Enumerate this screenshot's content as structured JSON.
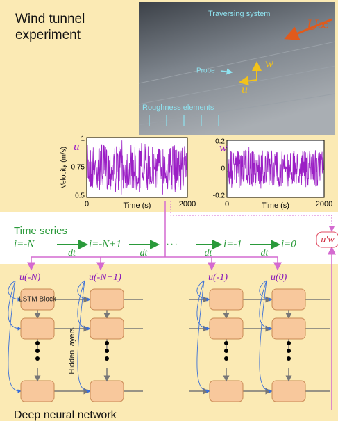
{
  "header": {
    "title": "Wind tunnel experiment"
  },
  "photo": {
    "traversing": "Traversing system",
    "probe": "Probe",
    "roughness": "Roughness elements",
    "freestream": "U∞",
    "w_axis": "w",
    "u_axis": "u"
  },
  "plots": [
    {
      "label": "u",
      "ylabel": "Velocity (m/s)",
      "xlabel": "Time (s)",
      "yticks": [
        1,
        0.75,
        0.5
      ],
      "xticks": [
        0,
        2000
      ]
    },
    {
      "label": "w",
      "xlabel": "Time (s)",
      "yticks": [
        0.2,
        0,
        -0.2
      ],
      "xticks": [
        0,
        2000
      ]
    }
  ],
  "timeseries": {
    "title": "Time series",
    "steps": [
      "i=-N",
      "i=-N+1",
      "· · ·",
      "i=-1",
      "i=0"
    ],
    "dt": [
      "dt",
      "dt",
      "dt",
      "dt"
    ],
    "output": "u'w"
  },
  "network": {
    "inputs": [
      "u(-N)",
      "u(-N+1)",
      "u(-1)",
      "u(0)"
    ],
    "block_label": "LSTM Block",
    "hidden_label": "Hidden layers",
    "title": "Deep neural network"
  }
}
